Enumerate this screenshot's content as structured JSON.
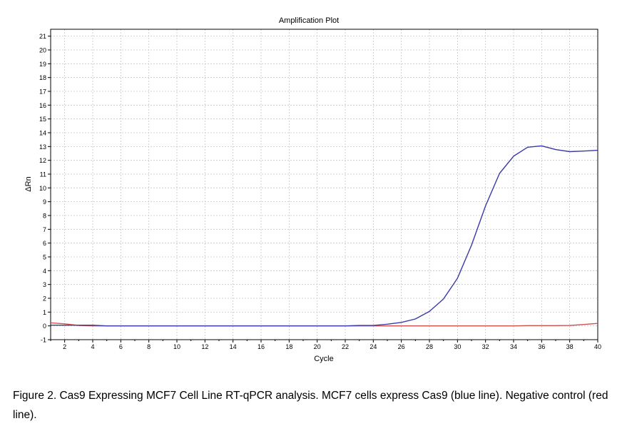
{
  "chart_data": {
    "type": "line",
    "title": "Amplification Plot",
    "xlabel": "Cycle",
    "ylabel": "ΔRn",
    "xlim": [
      1,
      40
    ],
    "ylim": [
      -1,
      21.5
    ],
    "xticks": [
      2,
      4,
      6,
      8,
      10,
      12,
      14,
      16,
      18,
      20,
      22,
      24,
      26,
      28,
      30,
      32,
      34,
      36,
      38,
      40
    ],
    "yticks": [
      -1,
      0,
      1,
      2,
      3,
      4,
      5,
      6,
      7,
      8,
      9,
      10,
      11,
      12,
      13,
      14,
      15,
      16,
      17,
      18,
      19,
      20,
      21
    ],
    "grid": true,
    "series": [
      {
        "color": "#3a3aa8",
        "x": [
          1,
          2,
          3,
          4,
          5,
          6,
          7,
          8,
          9,
          10,
          11,
          12,
          13,
          14,
          15,
          16,
          17,
          18,
          19,
          20,
          21,
          22,
          23,
          24,
          25,
          26,
          27,
          28,
          29,
          30,
          31,
          32,
          33,
          34,
          35,
          36,
          37,
          38,
          39,
          40
        ],
        "y": [
          0.05,
          0.05,
          0.05,
          0.05,
          0.0,
          0.0,
          0.0,
          0.0,
          0.0,
          0.0,
          0.0,
          0.0,
          0.0,
          0.0,
          0.0,
          0.0,
          0.0,
          0.0,
          0.0,
          0.0,
          0.0,
          0.0,
          0.03,
          0.03,
          0.12,
          0.25,
          0.5,
          1.05,
          1.95,
          3.45,
          5.85,
          8.7,
          11.05,
          12.3,
          12.95,
          13.05,
          12.78,
          12.63,
          12.67,
          12.73
        ]
      },
      {
        "color": "#d05050",
        "x": [
          1,
          2,
          3,
          4,
          5,
          6,
          7,
          8,
          9,
          10,
          11,
          12,
          13,
          14,
          15,
          16,
          17,
          18,
          19,
          20,
          21,
          22,
          23,
          24,
          25,
          26,
          27,
          28,
          29,
          30,
          31,
          32,
          33,
          34,
          35,
          36,
          37,
          38,
          39,
          40
        ],
        "y": [
          0.22,
          0.15,
          0.03,
          0.0,
          0.0,
          0.0,
          0.0,
          0.0,
          0.0,
          0.0,
          0.0,
          0.0,
          0.0,
          0.0,
          0.0,
          0.0,
          0.0,
          0.0,
          0.0,
          0.0,
          0.0,
          0.0,
          0.0,
          0.0,
          0.0,
          0.0,
          0.0,
          0.0,
          0.0,
          0.0,
          0.0,
          0.0,
          0.0,
          0.0,
          0.02,
          0.02,
          0.02,
          0.03,
          0.1,
          0.18
        ]
      }
    ]
  },
  "caption": {
    "text": "Figure 2. Cas9 Expressing  MCF7 Cell Line RT-qPCR analysis. MCF7 cells express Cas9 (blue line). Negative control (red line)."
  }
}
